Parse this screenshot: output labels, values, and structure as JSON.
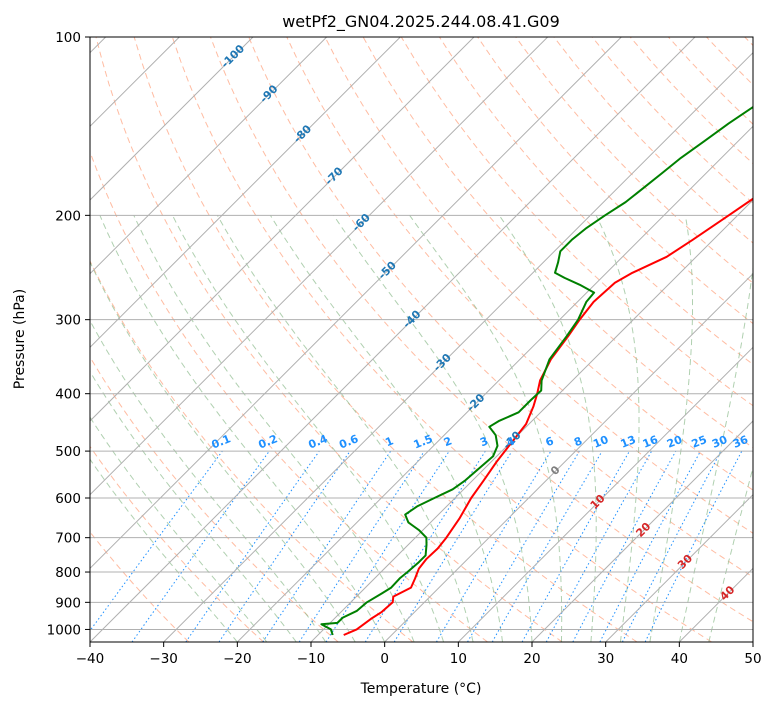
{
  "chart_data": {
    "type": "skew-t",
    "title": "wetPf2_GN04.2025.244.08.41.G09",
    "xlabel": "Temperature (°C)",
    "ylabel": "Pressure (hPa)",
    "xlim": [
      -40,
      50
    ],
    "ylim": [
      1050,
      100
    ],
    "y_scale": "log",
    "x_ticks": [
      "−40",
      "−30",
      "−20",
      "−10",
      "0",
      "10",
      "20",
      "30",
      "40",
      "50"
    ],
    "y_ticks": [
      "100",
      "200",
      "300",
      "400",
      "500",
      "600",
      "700",
      "800",
      "900",
      "1000"
    ],
    "grid": true,
    "isotherm_labels": [
      "-100",
      "-90",
      "-80",
      "-70",
      "-60",
      "-50",
      "-40",
      "-30",
      "-20",
      "-10",
      "0",
      "10",
      "20",
      "30",
      "40"
    ],
    "mixing_ratio_labels": [
      "0.1",
      "0.2",
      "0.4",
      "0.6",
      "1",
      "1.5",
      "2",
      "3",
      "4",
      "6",
      "8",
      "10",
      "13",
      "16",
      "20",
      "25",
      "30",
      "36"
    ],
    "colors": {
      "temperature": "#ff0000",
      "dewpoint": "#008000",
      "isotherm_labels": "#1f77b4",
      "isotherm_warm_labels": "#d62728",
      "zero_isotherm_label": "#808080",
      "mixing_ratio": "#1e90ff",
      "dry_adiabats": "#ffa07a",
      "moist_adiabats": "#8fbc8f"
    },
    "series": [
      {
        "name": "temperature",
        "points": [
          [
            1022,
            -6.5
          ],
          [
            1000,
            -5.5
          ],
          [
            960,
            -5.0
          ],
          [
            935,
            -4.5
          ],
          [
            900,
            -4.3
          ],
          [
            880,
            -5.0
          ],
          [
            850,
            -3.8
          ],
          [
            820,
            -4.5
          ],
          [
            790,
            -5.3
          ],
          [
            760,
            -5.6
          ],
          [
            730,
            -5.5
          ],
          [
            700,
            -5.8
          ],
          [
            650,
            -6.6
          ],
          [
            600,
            -7.8
          ],
          [
            560,
            -8.5
          ],
          [
            520,
            -9.3
          ],
          [
            480,
            -9.9
          ],
          [
            450,
            -10.4
          ],
          [
            420,
            -11.8
          ],
          [
            400,
            -13.0
          ],
          [
            380,
            -14.4
          ],
          [
            350,
            -15.8
          ],
          [
            320,
            -16.6
          ],
          [
            300,
            -17.3
          ],
          [
            280,
            -17.8
          ],
          [
            260,
            -17.5
          ],
          [
            250,
            -16.5
          ],
          [
            235,
            -14.0
          ],
          [
            220,
            -12.8
          ],
          [
            200,
            -11.2
          ],
          [
            180,
            -9.5
          ],
          [
            160,
            -7.4
          ],
          [
            140,
            -5.2
          ],
          [
            120,
            -2.8
          ],
          [
            110,
            -1.4
          ],
          [
            100,
            0.0
          ]
        ]
      },
      {
        "name": "dewpoint",
        "points": [
          [
            1022,
            -8.0
          ],
          [
            1000,
            -9.0
          ],
          [
            980,
            -11.0
          ],
          [
            975,
            -9.0
          ],
          [
            955,
            -9.0
          ],
          [
            930,
            -8.0
          ],
          [
            900,
            -7.8
          ],
          [
            870,
            -7.0
          ],
          [
            850,
            -6.5
          ],
          [
            820,
            -6.6
          ],
          [
            800,
            -6.4
          ],
          [
            770,
            -6.2
          ],
          [
            750,
            -6.2
          ],
          [
            720,
            -7.5
          ],
          [
            700,
            -8.5
          ],
          [
            680,
            -10.5
          ],
          [
            660,
            -13.0
          ],
          [
            640,
            -14.5
          ],
          [
            620,
            -14.0
          ],
          [
            600,
            -12.8
          ],
          [
            580,
            -11.5
          ],
          [
            560,
            -11.0
          ],
          [
            540,
            -10.8
          ],
          [
            510,
            -10.5
          ],
          [
            490,
            -11.3
          ],
          [
            470,
            -13.0
          ],
          [
            455,
            -15.0
          ],
          [
            445,
            -14.5
          ],
          [
            430,
            -13.0
          ],
          [
            410,
            -13.0
          ],
          [
            395,
            -12.9
          ],
          [
            380,
            -14.2
          ],
          [
            350,
            -16.0
          ],
          [
            320,
            -16.8
          ],
          [
            300,
            -17.5
          ],
          [
            280,
            -18.8
          ],
          [
            270,
            -19.0
          ],
          [
            262,
            -22.0
          ],
          [
            255,
            -25.0
          ],
          [
            250,
            -27.0
          ],
          [
            240,
            -28.0
          ],
          [
            230,
            -29.2
          ],
          [
            220,
            -29.2
          ],
          [
            210,
            -28.8
          ],
          [
            200,
            -28.0
          ],
          [
            190,
            -27.0
          ],
          [
            180,
            -26.5
          ],
          [
            170,
            -26.0
          ],
          [
            160,
            -25.5
          ],
          [
            150,
            -24.6
          ],
          [
            140,
            -23.7
          ],
          [
            125,
            -21.8
          ],
          [
            115,
            -19.5
          ],
          [
            108,
            -17.5
          ],
          [
            100,
            -15.8
          ]
        ]
      }
    ]
  }
}
